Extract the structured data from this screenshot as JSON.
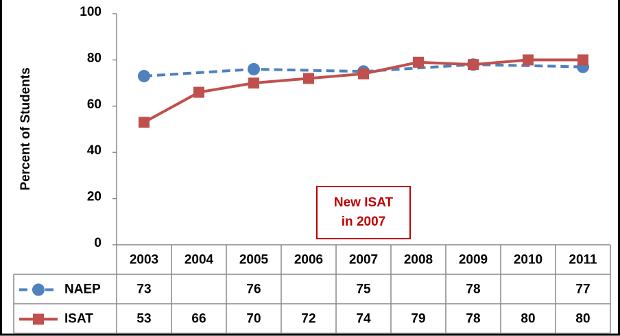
{
  "chart_data": {
    "type": "line",
    "y_label": "Percent of Students",
    "annotation": [
      "New ISAT",
      "in 2007"
    ],
    "annotation_color": "#c00000",
    "categories": [
      2003,
      2004,
      2005,
      2006,
      2007,
      2008,
      2009,
      2010,
      2011
    ],
    "ylim": [
      0,
      100
    ],
    "yticks": [
      0,
      20,
      40,
      60,
      80,
      100
    ],
    "series": [
      {
        "name": "NAEP",
        "color": "#4f81bd",
        "dashed": true,
        "marker": "circle",
        "x": [
          2003,
          2005,
          2007,
          2009,
          2011
        ],
        "values": [
          73,
          76,
          75,
          78,
          77
        ]
      },
      {
        "name": "ISAT",
        "color": "#c0504d",
        "dashed": false,
        "marker": "square",
        "x": [
          2003,
          2004,
          2005,
          2006,
          2007,
          2008,
          2009,
          2010,
          2011
        ],
        "values": [
          53,
          66,
          70,
          72,
          74,
          79,
          78,
          80,
          80
        ]
      }
    ]
  }
}
